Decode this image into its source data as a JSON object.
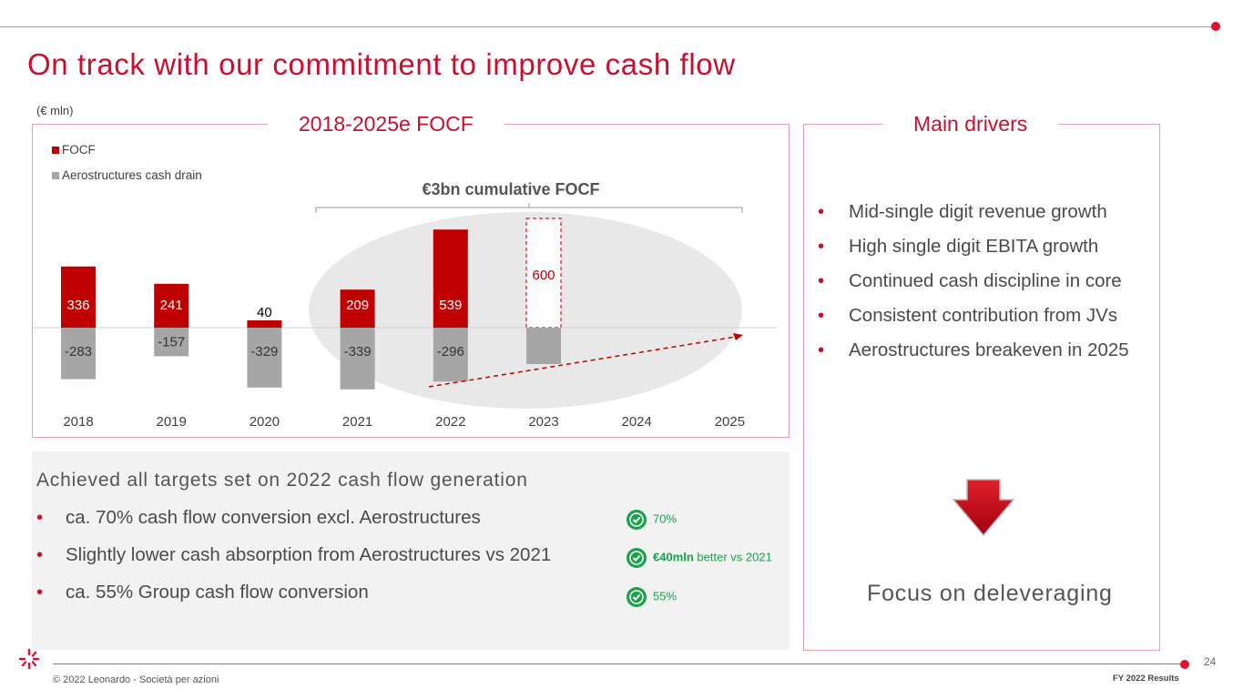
{
  "slide": {
    "title": "On track with our commitment to improve cash flow",
    "unit_note": "(€ mln)",
    "page_number": "24",
    "copyright": "© 2022 Leonardo - Società per azioni",
    "footer_label": "FY 2022 Results",
    "accent_color": "#c8102e"
  },
  "chart_box": {
    "title": "2018-2025e FOCF",
    "annotation": "€3bn cumulative FOCF"
  },
  "chart_data": {
    "type": "bar",
    "stacked": true,
    "categories": [
      "2018",
      "2019",
      "2020",
      "2021",
      "2022",
      "2023",
      "2024",
      "2025"
    ],
    "series": [
      {
        "name": "FOCF",
        "color": "#c00000",
        "values": [
          336,
          241,
          40,
          209,
          539,
          600,
          null,
          null
        ],
        "labels": [
          "336",
          "241",
          "40",
          "209",
          "539",
          "600",
          "",
          ""
        ]
      },
      {
        "name": "Aerostructures cash drain",
        "color": "#a6a6a6",
        "values": [
          -283,
          -157,
          -329,
          -339,
          -296,
          -200,
          null,
          null
        ],
        "labels": [
          "-283",
          "-157",
          "-329",
          "-339",
          "-296",
          "",
          "",
          ""
        ]
      }
    ],
    "estimate_bar": {
      "category": "2023",
      "value": 600,
      "style": "dashed-outline"
    },
    "legend_position": "top-left",
    "grid": false
  },
  "drivers": {
    "title": "Main drivers",
    "items": [
      "Mid-single digit revenue growth",
      "High single digit EBITA growth",
      "Continued cash discipline in core",
      "Consistent contribution from JVs",
      "Aerostructures breakeven in 2025"
    ],
    "conclusion": "Focus on deleveraging",
    "arrow_icon": "down-arrow-icon"
  },
  "targets": {
    "title": "Achieved all targets set on 2022 cash flow generation",
    "items": [
      {
        "text": "ca. 70% cash flow conversion excl. Aerostructures",
        "badge_bold": "",
        "badge": "70%"
      },
      {
        "text": "Slightly lower cash absorption from Aerostructures vs 2021",
        "badge_bold": "€40mln",
        "badge": " better vs 2021"
      },
      {
        "text": "ca. 55% Group cash flow conversion",
        "badge_bold": "",
        "badge": "55%"
      }
    ],
    "badge_icon": "check-badge-icon",
    "badge_color": "#1aa24a"
  }
}
